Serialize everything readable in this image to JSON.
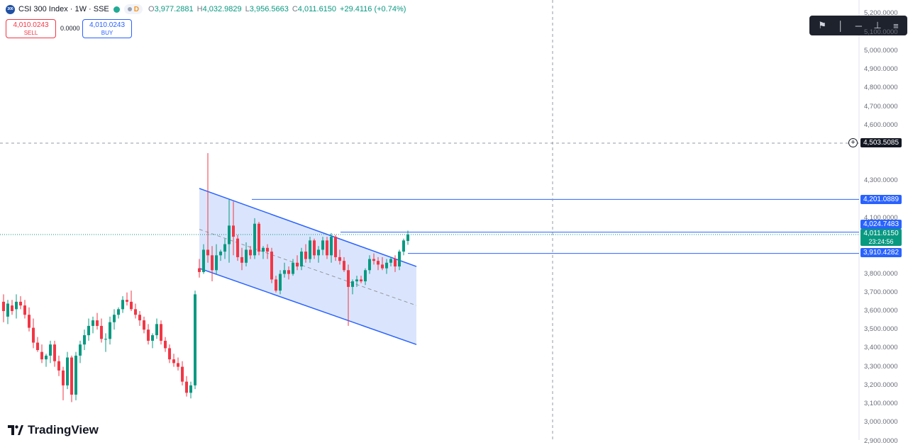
{
  "header": {
    "symbol_title": "CSI 300 Index · 1W · SSE",
    "mode_badge": "D",
    "ohlc": {
      "open_label": "O",
      "open": "3,977.2881",
      "high_label": "H",
      "high": "4,032.9829",
      "low_label": "L",
      "low": "3,956.5663",
      "close_label": "C",
      "close": "4,011.6150",
      "change": "+29.4116 (+0.74%)"
    },
    "logo_text": "300"
  },
  "trade": {
    "sell_price": "4,010.0243",
    "sell_label": "SELL",
    "spread": "0.0000",
    "buy_price": "4,010.0243",
    "buy_label": "BUY"
  },
  "toolbar": {
    "icons": [
      "flag-line-icon",
      "vertical-line-icon",
      "horizontal-line-icon",
      "price-range-icon",
      "more-icon"
    ]
  },
  "price_axis": {
    "ticks": [
      "5,200.0000",
      "5,100.0000",
      "5,000.0000",
      "4,900.0000",
      "4,800.0000",
      "4,700.0000",
      "4,600.0000",
      "4,300.0000",
      "4,100.0000",
      "3,800.0000",
      "3,700.0000",
      "3,600.0000",
      "3,500.0000",
      "3,400.0000",
      "3,300.0000",
      "3,200.0000",
      "3,100.0000",
      "3,000.0000",
      "2,900.0000"
    ],
    "labels": {
      "crosshair_price": "4,503.5085",
      "level_high": "4,201.0889",
      "level_mid": "4,024.7483",
      "last_price": "4,011.6150",
      "countdown": "23:24:56",
      "level_low": "3,910.4282"
    }
  },
  "colors": {
    "up": "#089981",
    "down": "#f23645",
    "line": "#2962ff",
    "channel_fill": "#d4e0fd"
  },
  "chart_data": {
    "type": "candlestick",
    "title": "",
    "ylim": [
      2900,
      5200
    ],
    "ohlc": [
      [
        3650,
        3690,
        3540,
        3600
      ],
      [
        3570,
        3660,
        3530,
        3640
      ],
      [
        3630,
        3660,
        3580,
        3600
      ],
      [
        3610,
        3690,
        3560,
        3650
      ],
      [
        3650,
        3680,
        3610,
        3630
      ],
      [
        3630,
        3660,
        3560,
        3580
      ],
      [
        3580,
        3620,
        3490,
        3510
      ],
      [
        3510,
        3560,
        3400,
        3430
      ],
      [
        3430,
        3460,
        3380,
        3390
      ],
      [
        3380,
        3420,
        3320,
        3340
      ],
      [
        3340,
        3370,
        3300,
        3360
      ],
      [
        3360,
        3440,
        3320,
        3420
      ],
      [
        3420,
        3440,
        3300,
        3330
      ],
      [
        3330,
        3360,
        3250,
        3280
      ],
      [
        3280,
        3300,
        3120,
        3200
      ],
      [
        3200,
        3380,
        3180,
        3350
      ],
      [
        3350,
        3360,
        3110,
        3150
      ],
      [
        3150,
        3380,
        3120,
        3360
      ],
      [
        3360,
        3440,
        3320,
        3420
      ],
      [
        3420,
        3500,
        3390,
        3470
      ],
      [
        3470,
        3560,
        3440,
        3520
      ],
      [
        3520,
        3570,
        3480,
        3550
      ],
      [
        3550,
        3590,
        3500,
        3520
      ],
      [
        3520,
        3560,
        3430,
        3450
      ],
      [
        3450,
        3480,
        3380,
        3450
      ],
      [
        3450,
        3570,
        3420,
        3540
      ],
      [
        3540,
        3610,
        3500,
        3580
      ],
      [
        3580,
        3620,
        3560,
        3610
      ],
      [
        3610,
        3680,
        3590,
        3660
      ],
      [
        3660,
        3700,
        3630,
        3650
      ],
      [
        3650,
        3710,
        3600,
        3610
      ],
      [
        3610,
        3640,
        3560,
        3580
      ],
      [
        3580,
        3600,
        3520,
        3550
      ],
      [
        3550,
        3570,
        3480,
        3500
      ],
      [
        3500,
        3530,
        3420,
        3440
      ],
      [
        3440,
        3480,
        3400,
        3470
      ],
      [
        3470,
        3560,
        3450,
        3530
      ],
      [
        3530,
        3550,
        3420,
        3440
      ],
      [
        3440,
        3460,
        3380,
        3400
      ],
      [
        3400,
        3420,
        3320,
        3340
      ],
      [
        3340,
        3370,
        3300,
        3320
      ],
      [
        3320,
        3350,
        3280,
        3300
      ],
      [
        3300,
        3330,
        3200,
        3220
      ],
      [
        3220,
        3250,
        3140,
        3160
      ],
      [
        3160,
        3220,
        3130,
        3200
      ],
      [
        3200,
        3710,
        3180,
        3690
      ],
      [
        3830,
        3880,
        3780,
        3810
      ],
      [
        3810,
        3960,
        3800,
        3930
      ],
      [
        3930,
        4450,
        3860,
        3900
      ],
      [
        3900,
        3950,
        3760,
        3820
      ],
      [
        3820,
        3960,
        3800,
        3900
      ],
      [
        3900,
        3930,
        3870,
        3920
      ],
      [
        3920,
        3990,
        3880,
        3960
      ],
      [
        3960,
        4200,
        3860,
        4060
      ],
      [
        4060,
        4190,
        3900,
        4000
      ],
      [
        3990,
        4010,
        3870,
        3890
      ],
      [
        3890,
        3940,
        3820,
        3860
      ],
      [
        3860,
        3970,
        3840,
        3930
      ],
      [
        3930,
        3950,
        3880,
        3900
      ],
      [
        3900,
        4100,
        3880,
        4070
      ],
      [
        4070,
        4080,
        3900,
        3920
      ],
      [
        3920,
        3950,
        3880,
        3940
      ],
      [
        3940,
        3960,
        3880,
        3920
      ],
      [
        3920,
        3940,
        3750,
        3770
      ],
      [
        3770,
        3790,
        3700,
        3710
      ],
      [
        3710,
        3820,
        3690,
        3800
      ],
      [
        3800,
        3860,
        3780,
        3820
      ],
      [
        3820,
        3840,
        3770,
        3800
      ],
      [
        3800,
        3880,
        3790,
        3860
      ],
      [
        3860,
        3900,
        3820,
        3840
      ],
      [
        3840,
        3940,
        3820,
        3920
      ],
      [
        3920,
        3960,
        3860,
        3880
      ],
      [
        3880,
        4000,
        3860,
        3980
      ],
      [
        3980,
        3990,
        3880,
        3900
      ],
      [
        3900,
        3950,
        3860,
        3930
      ],
      [
        3930,
        4000,
        3900,
        3980
      ],
      [
        3980,
        4000,
        3880,
        3900
      ],
      [
        3900,
        4020,
        3860,
        4000
      ],
      [
        4000,
        4010,
        3870,
        3890
      ],
      [
        3890,
        3930,
        3850,
        3870
      ],
      [
        3870,
        3890,
        3810,
        3820
      ],
      [
        3820,
        3850,
        3520,
        3730
      ],
      [
        3730,
        3770,
        3690,
        3760
      ],
      [
        3760,
        3790,
        3730,
        3770
      ],
      [
        3770,
        3790,
        3750,
        3760
      ],
      [
        3760,
        3830,
        3740,
        3820
      ],
      [
        3820,
        3900,
        3800,
        3880
      ],
      [
        3880,
        3910,
        3850,
        3870
      ],
      [
        3870,
        3890,
        3820,
        3850
      ],
      [
        3850,
        3890,
        3820,
        3830
      ],
      [
        3830,
        3880,
        3800,
        3860
      ],
      [
        3860,
        3890,
        3840,
        3880
      ],
      [
        3880,
        3900,
        3810,
        3840
      ],
      [
        3840,
        3930,
        3820,
        3920
      ],
      [
        3920,
        3990,
        3900,
        3980
      ],
      [
        3977.2881,
        4032.9829,
        3956.5663,
        4011.615
      ]
    ],
    "horizontal_levels": [
      4201.0889,
      4024.7483,
      3910.4282
    ],
    "crosshair_price": 4503.5085,
    "channel": {
      "upper": [
        [
          46,
          4260
        ],
        [
          97,
          3840
        ]
      ],
      "middle": [
        [
          46,
          4040
        ],
        [
          97,
          3630
        ]
      ],
      "lower": [
        [
          46,
          3830
        ],
        [
          97,
          3420
        ]
      ]
    }
  },
  "brand": {
    "name": "TradingView"
  }
}
